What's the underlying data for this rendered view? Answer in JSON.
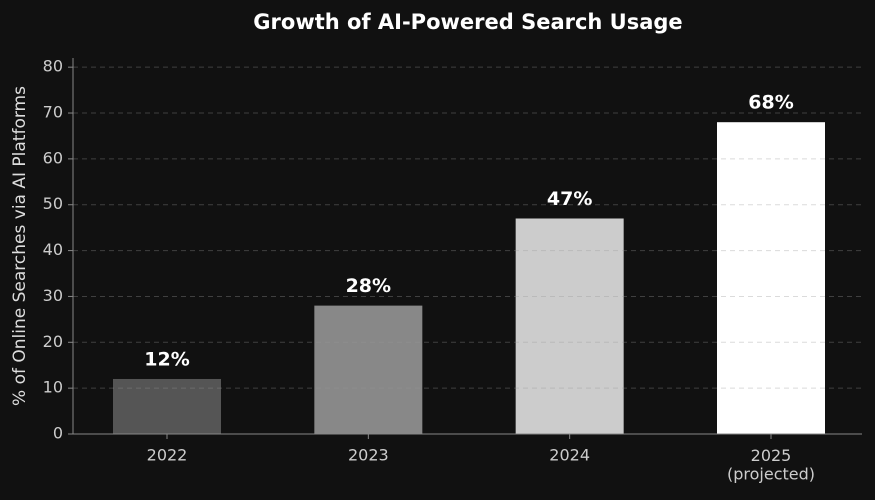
{
  "chart_data": {
    "type": "bar",
    "title": "Growth of AI-Powered Search Usage",
    "y_label": "% of Online Searches via AI Platforms",
    "categories": [
      "2022",
      "2023",
      "2024",
      "2025\n(projected)"
    ],
    "values": [
      12,
      28,
      47,
      68
    ],
    "value_labels": [
      "12%",
      "28%",
      "47%",
      "68%"
    ],
    "colors": [
      "#555555",
      "#888888",
      "#cccccc",
      "#ffffff"
    ],
    "ylim": [
      0,
      82
    ],
    "yticks": [
      0,
      10,
      20,
      30,
      40,
      50,
      60,
      70,
      80
    ],
    "grid": true
  }
}
